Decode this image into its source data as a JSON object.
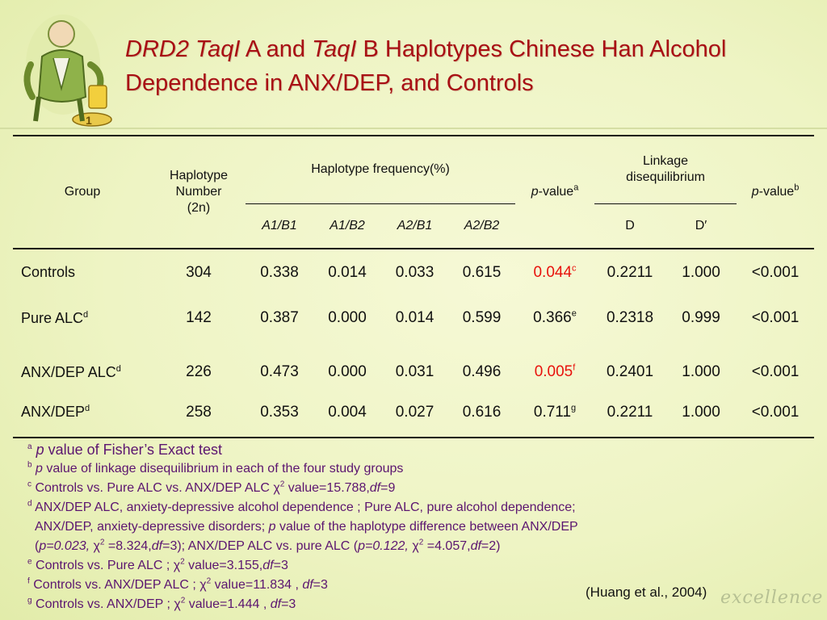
{
  "title": {
    "italic1": "DRD2 TaqI",
    "part2": " A and ",
    "italic2": "TaqI",
    "part3": " B Haplotypes Chinese Han Alcohol",
    "line2": "Dependence in ANX/DEP, and Controls"
  },
  "table": {
    "headers": {
      "group": "Group",
      "hapnum_line1": "Haplotype",
      "hapnum_line2": "Number",
      "hapnum_line3": "(2n)",
      "hapfreq": "Haplotype  frequency(%)",
      "pvalue_a_text": "p",
      "pvalue_a_rest": "-value",
      "pvalue_a_sup": "a",
      "ld_line1": "Linkage",
      "ld_line2": "disequilibrium",
      "pvalue_b_text": "p",
      "pvalue_b_rest": "-value",
      "pvalue_b_sup": "b",
      "a1b1": "A1/B1",
      "a1b2": "A1/B2",
      "a2b1": "A2/B1",
      "a2b2": "A2/B2",
      "d": "D",
      "dprime": "D′"
    },
    "rows": [
      {
        "group": "Controls",
        "group_sup": "",
        "n": "304",
        "a1b1": "0.338",
        "a1b2": "0.014",
        "a2b1": "0.033",
        "a2b2": "0.615",
        "p": "0.044",
        "p_sup": "c",
        "p_highlight": true,
        "d": "0.2211",
        "dprime": "1.000",
        "pb": "<0.001"
      },
      {
        "group": "Pure ALC",
        "group_sup": "d",
        "n": "142",
        "a1b1": "0.387",
        "a1b2": "0.000",
        "a2b1": "0.014",
        "a2b2": "0.599",
        "p": "0.366",
        "p_sup": "e",
        "p_highlight": false,
        "d": "0.2318",
        "dprime": "0.999",
        "pb": "<0.001"
      },
      {
        "group": "ANX/DEP ALC",
        "group_sup": "d",
        "n": "226",
        "a1b1": "0.473",
        "a1b2": "0.000",
        "a2b1": "0.031",
        "a2b2": "0.496",
        "p": "0.005",
        "p_sup": "f",
        "p_highlight": true,
        "d": "0.2401",
        "dprime": "1.000",
        "pb": "<0.001"
      },
      {
        "group": "ANX/DEP",
        "group_sup": "d",
        "n": "258",
        "a1b1": "0.353",
        "a1b2": "0.004",
        "a2b1": "0.027",
        "a2b2": "0.616",
        "p": "0.711",
        "p_sup": "g",
        "p_highlight": false,
        "d": "0.2211",
        "dprime": "1.000",
        "pb": "<0.001"
      }
    ]
  },
  "footnotes": {
    "a": {
      "sup": "a",
      "italic": "p",
      "text": " value of Fisher’s Exact test"
    },
    "b": {
      "sup": "b",
      "italic": "p",
      "text": " value of linkage disequilibrium in each of the four study groups"
    },
    "c": {
      "sup": "c",
      "text": "Controls vs. Pure ALC vs. ANX/DEP  ALC χ",
      "exp": "2",
      "text2": " value=15.788,",
      "df": "df",
      "text3": "=9"
    },
    "d": {
      "sup": "d",
      "line1": "ANX/DEP  ALC, anxiety-depressive alcohol dependence ; Pure ALC, pure alcohol dependence;",
      "line2a": "ANX/DEP, anxiety-depressive disorders; ",
      "line2p": "p",
      "line2b": " value of the haplotype difference between ANX/DEP",
      "line3a": "(",
      "line3p": "p=0.023,",
      "line3b": " χ",
      "line3exp": "2",
      "line3c": " =8.324,",
      "line3df": "df",
      "line3d": "=3); ANX/DEP  ALC vs. pure ALC (",
      "line3p2": "p=0.122,",
      "line3e": " χ",
      "line3exp2": "2",
      "line3f": " =4.057,",
      "line3df2": "df",
      "line3g": "=2)"
    },
    "e": {
      "sup": "e",
      "text": "Controls vs. Pure ALC ; χ",
      "exp": "2",
      "text2": " value=3.155,",
      "df": "df",
      "text3": "=3"
    },
    "f": {
      "sup": "f",
      "text": "Controls vs. ANX/DEP  ALC ; χ",
      "exp": "2",
      "text2": " value=11.834 , ",
      "df": "df",
      "text3": "=3"
    },
    "g": {
      "sup": "g",
      "text": "Controls vs. ANX/DEP ;  χ",
      "exp": "2",
      "text2": " value=1.444 , ",
      "df": "df",
      "text3": "=3"
    }
  },
  "citation": "(Huang et al., 2004)",
  "watermark": "excellence",
  "colors": {
    "title": "#a80f14",
    "highlight": "#e8120c",
    "notes": "#5b1570"
  }
}
